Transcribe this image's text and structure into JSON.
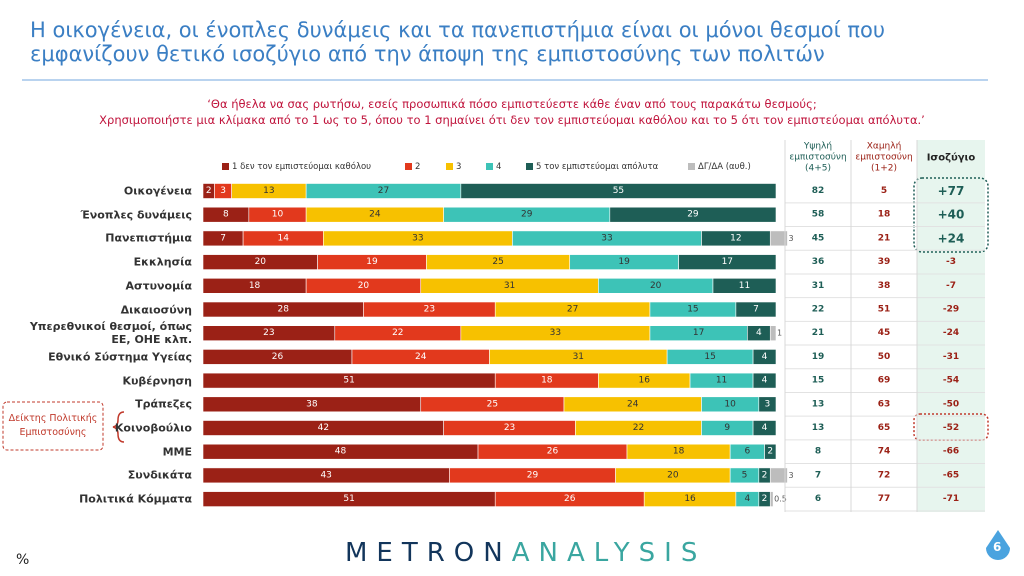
{
  "chart_data": {
    "type": "stacked-bar",
    "title": [
      "Η οικογένεια, οι ένοπλες δυνάμεις και τα πανεπιστήμια είναι οι μόνοι θεσμοί που",
      "εμφανίζουν θετικό ισοζύγιο από την άποψη της εμπιστοσύνης των πολιτών"
    ],
    "question": [
      "‘Θα ήθελα να σας ρωτήσω, εσείς προσωπικά πόσο εμπιστεύεστε κάθε έναν από τους παρακάτω θεσμούς;",
      "Χρησιμοποιήστε μια κλίμακα από το 1 ως το 5, όπου το 1 σημαίνει ότι δεν τον εμπιστεύομαι καθόλου και το 5 ότι τον εμπιστεύομαι απόλυτα.’"
    ],
    "categories": [
      "Οικογένεια",
      "Ένοπλες δυνάμεις",
      "Πανεπιστήμια",
      "Εκκλησία",
      "Αστυνομία",
      "Δικαιοσύνη",
      "Υπερεθνικοί θεσμοί, όπως ΕΕ, ΟΗΕ κλπ.",
      "Εθνικό Σύστημα Υγείας",
      "Κυβέρνηση",
      "Τράπεζες",
      "Κοινοβούλιο",
      "ΜΜΕ",
      "Συνδικάτα",
      "Πολιτικά Κόμματα"
    ],
    "xlim": [
      0,
      100
    ],
    "series": [
      {
        "name": "1  δεν τον εμπιστεύομαι καθόλου",
        "color": "#9b2116",
        "values": [
          2,
          8,
          7,
          20,
          18,
          28,
          23,
          26,
          51,
          38,
          42,
          48,
          43,
          51
        ]
      },
      {
        "name": "2",
        "color": "#e2391d",
        "values": [
          3,
          10,
          14,
          19,
          20,
          23,
          22,
          24,
          18,
          25,
          23,
          26,
          29,
          26
        ]
      },
      {
        "name": "3",
        "color": "#f7c100",
        "values": [
          13,
          24,
          33,
          25,
          31,
          27,
          33,
          31,
          16,
          24,
          22,
          18,
          20,
          16
        ]
      },
      {
        "name": "4",
        "color": "#3dc3b7",
        "values": [
          27,
          29,
          33,
          19,
          20,
          15,
          17,
          15,
          11,
          10,
          9,
          6,
          5,
          4
        ]
      },
      {
        "name": "5 τον εμπιστεύομαι απόλυτα",
        "color": "#1e5e56",
        "values": [
          55,
          29,
          12,
          17,
          11,
          7,
          4,
          4,
          4,
          3,
          4,
          2,
          2,
          2
        ]
      },
      {
        "name": "ΔΓ/ΔΑ (αυθ.)",
        "color": "#bdbdbd",
        "values": [
          null,
          null,
          3,
          null,
          null,
          null,
          1,
          null,
          null,
          null,
          null,
          null,
          3,
          0.5
        ]
      }
    ],
    "high_trust": {
      "header": "Υψηλή εμπιστοσύνη (4+5)",
      "color": "#1e5e56",
      "values": [
        82,
        58,
        45,
        36,
        31,
        22,
        21,
        19,
        15,
        13,
        13,
        8,
        7,
        6
      ]
    },
    "low_trust": {
      "header": "Χαμηλή εμπιστοσύνη (1+2)",
      "color": "#9b2116",
      "values": [
        5,
        18,
        21,
        39,
        38,
        51,
        45,
        50,
        69,
        63,
        65,
        74,
        72,
        77
      ]
    },
    "balance": {
      "header": "Ισοζύγιο",
      "values": [
        77,
        40,
        24,
        -3,
        -7,
        -29,
        -24,
        -31,
        -54,
        -50,
        -52,
        -66,
        -65,
        -71
      ],
      "value_labels": [
        "+77",
        "+40",
        "+24",
        "-3",
        "-7",
        "-29",
        "-24",
        "-31",
        "-54",
        "-50",
        "-52",
        "-66",
        "-65",
        "-71"
      ]
    },
    "side_note": "Δείκτης Πολιτικής Εμπιστοσύνης",
    "unit_note": "%"
  },
  "footer": {
    "brand_left": "METRON",
    "brand_right": "ANALYSIS",
    "page": "6"
  }
}
